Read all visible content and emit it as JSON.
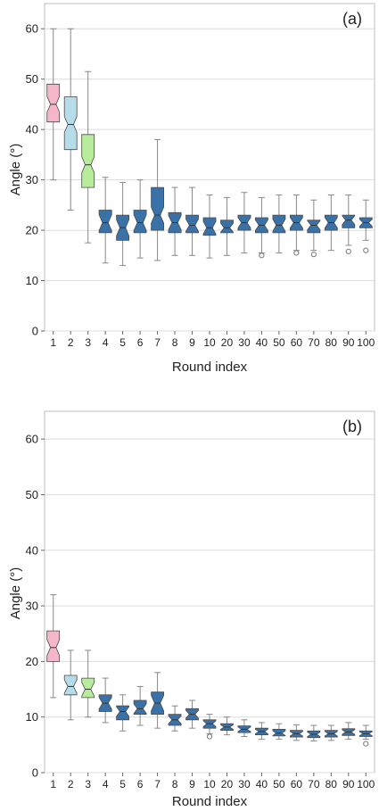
{
  "chart_data": [
    {
      "type": "boxplot",
      "panel_label": "(a)",
      "xlabel": "Round index",
      "ylabel": "Angle (°)",
      "ylim": [
        0,
        65
      ],
      "yticks": [
        0,
        10,
        20,
        30,
        40,
        50,
        60
      ],
      "grid": true,
      "categories": [
        "1",
        "2",
        "3",
        "4",
        "5",
        "6",
        "7",
        "8",
        "9",
        "10",
        "20",
        "30",
        "40",
        "50",
        "60",
        "70",
        "80",
        "90",
        "100"
      ],
      "boxes": [
        {
          "min": 30,
          "q1": 41.5,
          "median": 45,
          "q3": 49,
          "max": 60,
          "color": "#f4b6c8"
        },
        {
          "min": 24,
          "q1": 36,
          "median": 41,
          "q3": 46.5,
          "max": 60,
          "color": "#b6dcea"
        },
        {
          "min": 17.5,
          "q1": 28.5,
          "median": 33,
          "q3": 39,
          "max": 51.5,
          "color": "#b8ec9c"
        },
        {
          "min": 13.5,
          "q1": 19.5,
          "median": 21.5,
          "q3": 24,
          "max": 30.5,
          "color": "#3a72a8"
        },
        {
          "min": 13,
          "q1": 18,
          "median": 20.5,
          "q3": 23,
          "max": 29.5,
          "color": "#3a72a8"
        },
        {
          "min": 14.5,
          "q1": 19.5,
          "median": 21.5,
          "q3": 24,
          "max": 30,
          "color": "#3a72a8"
        },
        {
          "min": 14,
          "q1": 20,
          "median": 23,
          "q3": 28.5,
          "max": 38,
          "color": "#3a72a8"
        },
        {
          "min": 15,
          "q1": 19.5,
          "median": 21.5,
          "q3": 23.5,
          "max": 28.5,
          "color": "#3a72a8"
        },
        {
          "min": 15,
          "q1": 19.5,
          "median": 21,
          "q3": 23,
          "max": 28.5,
          "color": "#3a72a8"
        },
        {
          "min": 14.5,
          "q1": 19,
          "median": 20.5,
          "q3": 22.5,
          "max": 27,
          "color": "#3a72a8"
        },
        {
          "min": 15,
          "q1": 19.5,
          "median": 20.5,
          "q3": 22,
          "max": 26.5,
          "color": "#3a72a8"
        },
        {
          "min": 15.5,
          "q1": 20,
          "median": 21.5,
          "q3": 23,
          "max": 27.5,
          "color": "#3a72a8"
        },
        {
          "min": 15.5,
          "q1": 19.5,
          "median": 21,
          "q3": 22.5,
          "max": 26.5,
          "color": "#3a72a8",
          "outliers": [
            15
          ]
        },
        {
          "min": 15.5,
          "q1": 19.5,
          "median": 21,
          "q3": 23,
          "max": 27,
          "color": "#3a72a8"
        },
        {
          "min": 16,
          "q1": 20,
          "median": 21.5,
          "q3": 23,
          "max": 27,
          "color": "#3a72a8",
          "outliers": [
            15.5
          ]
        },
        {
          "min": 16,
          "q1": 19.5,
          "median": 21,
          "q3": 22,
          "max": 26,
          "color": "#3a72a8",
          "outliers": [
            15.2
          ]
        },
        {
          "min": 16,
          "q1": 20,
          "median": 21.5,
          "q3": 23,
          "max": 27,
          "color": "#3a72a8"
        },
        {
          "min": 17,
          "q1": 20.5,
          "median": 22,
          "q3": 23,
          "max": 27,
          "color": "#3a72a8",
          "outliers": [
            15.8
          ]
        },
        {
          "min": 18,
          "q1": 20.5,
          "median": 21.5,
          "q3": 22.5,
          "max": 26,
          "color": "#3a72a8",
          "outliers": [
            16
          ]
        }
      ]
    },
    {
      "type": "boxplot",
      "panel_label": "(b)",
      "xlabel": "Round index",
      "ylabel": "Angle (°)",
      "ylim": [
        0,
        65
      ],
      "yticks": [
        0,
        10,
        20,
        30,
        40,
        50,
        60
      ],
      "grid": true,
      "categories": [
        "1",
        "2",
        "3",
        "4",
        "5",
        "6",
        "7",
        "8",
        "9",
        "10",
        "20",
        "30",
        "40",
        "50",
        "60",
        "70",
        "80",
        "90",
        "100"
      ],
      "boxes": [
        {
          "min": 13.5,
          "q1": 20,
          "median": 22.5,
          "q3": 25.5,
          "max": 32,
          "color": "#f4b6c8"
        },
        {
          "min": 9.5,
          "q1": 14,
          "median": 15.5,
          "q3": 17.5,
          "max": 22,
          "color": "#b6dcea"
        },
        {
          "min": 10,
          "q1": 13.5,
          "median": 15,
          "q3": 17,
          "max": 22,
          "color": "#b8ec9c"
        },
        {
          "min": 9,
          "q1": 11,
          "median": 12.5,
          "q3": 14,
          "max": 17,
          "color": "#3a72a8"
        },
        {
          "min": 7.5,
          "q1": 9.5,
          "median": 11,
          "q3": 12,
          "max": 14,
          "color": "#3a72a8"
        },
        {
          "min": 8.5,
          "q1": 10.5,
          "median": 11.5,
          "q3": 13,
          "max": 15.5,
          "color": "#3a72a8"
        },
        {
          "min": 8,
          "q1": 10.5,
          "median": 12.5,
          "q3": 14.5,
          "max": 18,
          "color": "#3a72a8"
        },
        {
          "min": 7.5,
          "q1": 8.5,
          "median": 9.5,
          "q3": 10.5,
          "max": 12,
          "color": "#3a72a8"
        },
        {
          "min": 8,
          "q1": 9.5,
          "median": 10.5,
          "q3": 11.5,
          "max": 13,
          "color": "#3a72a8"
        },
        {
          "min": 7,
          "q1": 8,
          "median": 8.8,
          "q3": 9.5,
          "max": 10.5,
          "color": "#3a72a8",
          "outliers": [
            6.5
          ]
        },
        {
          "min": 6.8,
          "q1": 7.6,
          "median": 8.2,
          "q3": 8.8,
          "max": 10,
          "color": "#3a72a8"
        },
        {
          "min": 6.5,
          "q1": 7.2,
          "median": 7.8,
          "q3": 8.4,
          "max": 9.5,
          "color": "#3a72a8"
        },
        {
          "min": 6,
          "q1": 6.8,
          "median": 7.4,
          "q3": 8,
          "max": 9,
          "color": "#3a72a8"
        },
        {
          "min": 6,
          "q1": 6.6,
          "median": 7.1,
          "q3": 7.8,
          "max": 8.8,
          "color": "#3a72a8"
        },
        {
          "min": 5.8,
          "q1": 6.4,
          "median": 7,
          "q3": 7.6,
          "max": 8.6,
          "color": "#3a72a8"
        },
        {
          "min": 5.7,
          "q1": 6.3,
          "median": 6.9,
          "q3": 7.5,
          "max": 8.5,
          "color": "#3a72a8"
        },
        {
          "min": 5.8,
          "q1": 6.4,
          "median": 7,
          "q3": 7.6,
          "max": 8.5,
          "color": "#3a72a8"
        },
        {
          "min": 6,
          "q1": 6.7,
          "median": 7.3,
          "q3": 7.9,
          "max": 9,
          "color": "#3a72a8"
        },
        {
          "min": 6,
          "q1": 6.5,
          "median": 7,
          "q3": 7.5,
          "max": 8.5,
          "color": "#3a72a8",
          "outliers": [
            5.2
          ]
        }
      ]
    }
  ]
}
